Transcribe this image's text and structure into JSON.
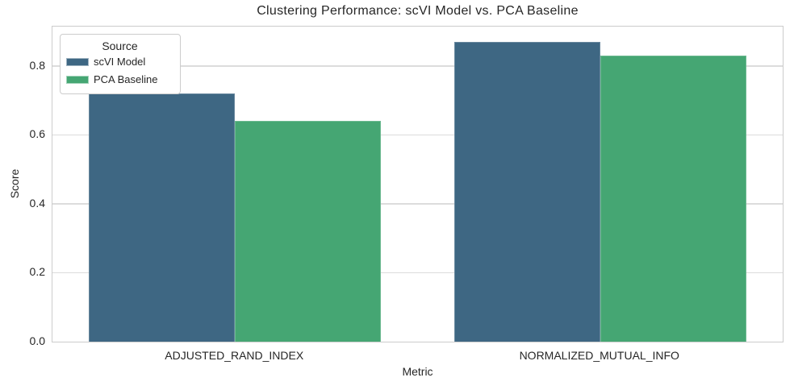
{
  "chart_data": {
    "type": "bar",
    "title": "Clustering Performance: scVI Model vs. PCA Baseline",
    "xlabel": "Metric",
    "ylabel": "Score",
    "categories": [
      "ADJUSTED_RAND_INDEX",
      "NORMALIZED_MUTUAL_INFO"
    ],
    "series": [
      {
        "name": "scVI Model",
        "color": "#3e6783",
        "values": [
          0.72,
          0.87
        ]
      },
      {
        "name": "PCA Baseline",
        "color": "#45a673",
        "values": [
          0.64,
          0.83
        ]
      }
    ],
    "legend_title": "Source",
    "legend_position": "upper-left",
    "ylim": [
      0,
      0.9135
    ],
    "yticks": [
      0.0,
      0.2,
      0.4,
      0.6,
      0.8
    ],
    "ytick_labels": [
      "0.0",
      "0.2",
      "0.4",
      "0.6",
      "0.8"
    ],
    "grid": true
  },
  "colors": {
    "bar_blue": "#3e6783",
    "bar_green": "#45a673",
    "grid": "#dcdcdc",
    "spine": "#cccccc",
    "text": "#262626",
    "background": "#ffffff"
  }
}
